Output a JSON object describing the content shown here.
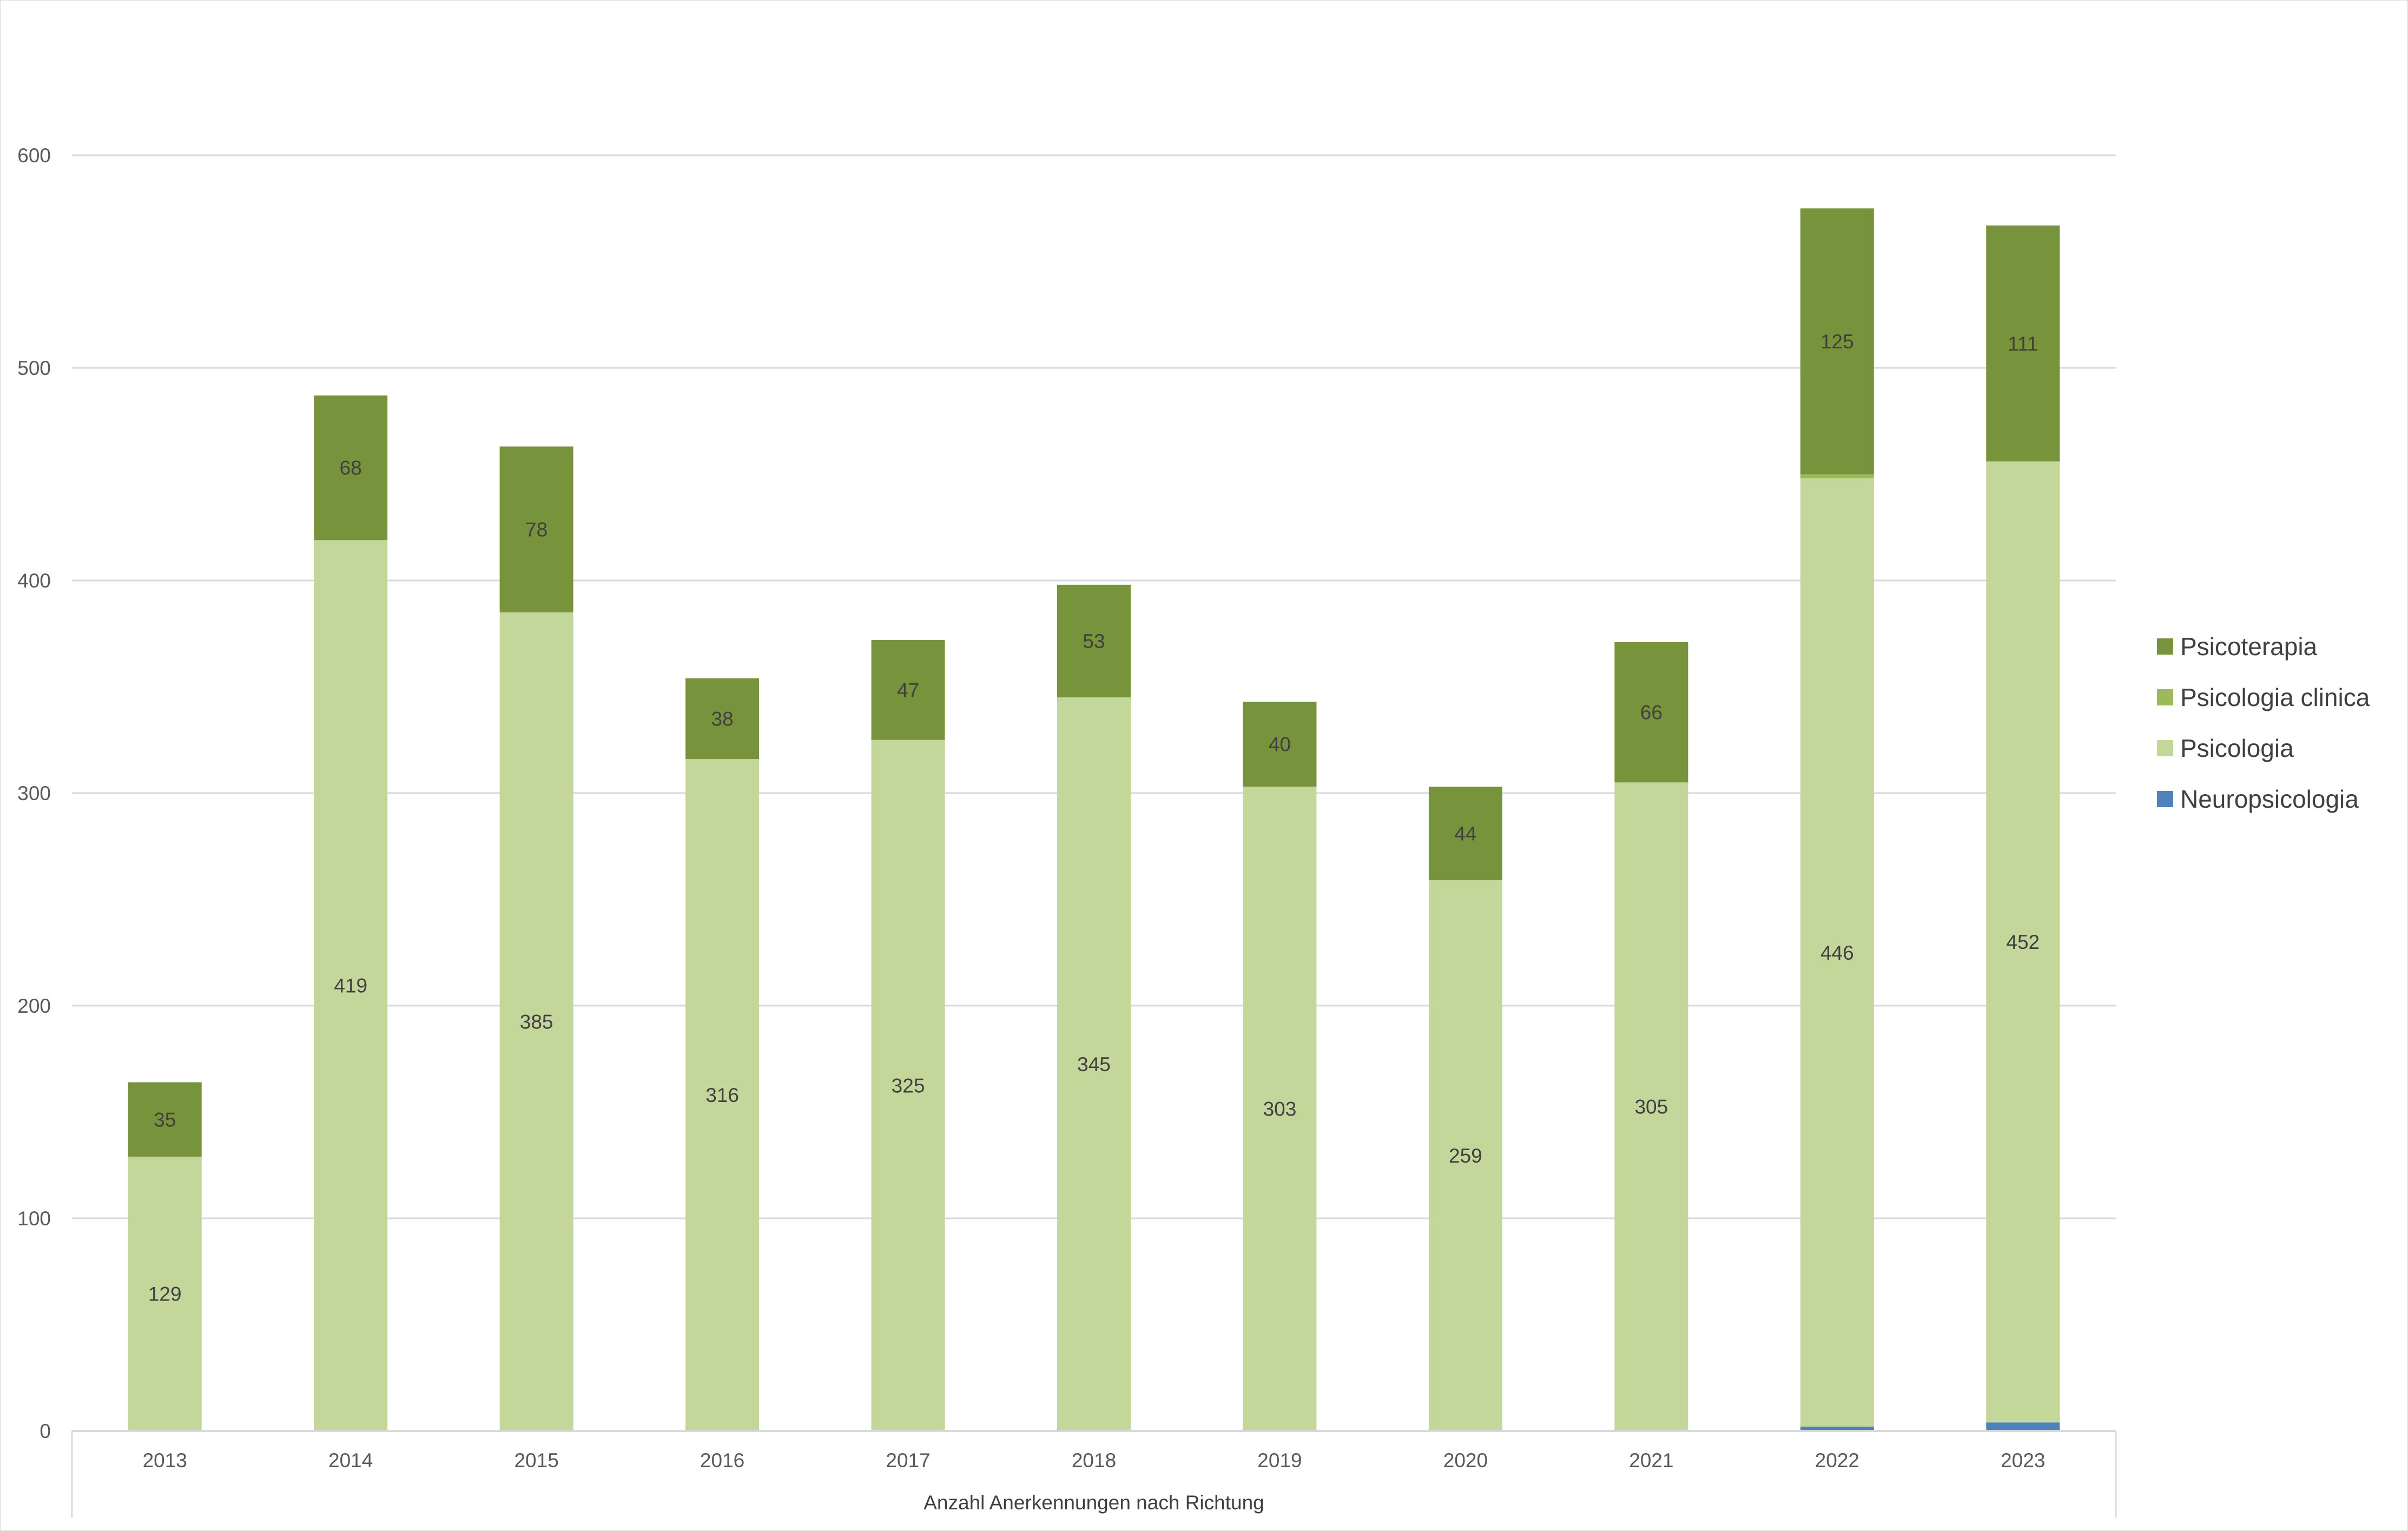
{
  "chart_data": {
    "type": "bar",
    "stacked": true,
    "title": "",
    "xlabel": "Anzahl Anerkennungen nach Richtung",
    "ylabel": "",
    "ylim": [
      0,
      600
    ],
    "yticks": [
      0,
      100,
      200,
      300,
      400,
      500,
      600
    ],
    "grid": true,
    "legend_position": "right",
    "categories": [
      "2013",
      "2014",
      "2015",
      "2016",
      "2017",
      "2018",
      "2019",
      "2020",
      "2021",
      "2022",
      "2023"
    ],
    "series": [
      {
        "name": "Neuropsicologia",
        "color": "#4f81bd",
        "show_labels": false,
        "values": [
          0,
          0,
          0,
          0,
          0,
          0,
          0,
          0,
          0,
          2,
          4
        ]
      },
      {
        "name": "Psicologia",
        "color": "#c4d79b",
        "show_labels": true,
        "values": [
          129,
          419,
          385,
          316,
          325,
          345,
          303,
          259,
          305,
          446,
          452
        ]
      },
      {
        "name": "Psicologia clinica",
        "color": "#9bbb59",
        "show_labels": false,
        "values": [
          0,
          0,
          0,
          0,
          0,
          0,
          0,
          0,
          0,
          2,
          0
        ]
      },
      {
        "name": "Psicoterapia",
        "color": "#77933c",
        "show_labels": true,
        "values": [
          35,
          68,
          78,
          38,
          47,
          53,
          40,
          44,
          66,
          125,
          111
        ]
      }
    ],
    "legend_order": [
      "Psicoterapia",
      "Psicologia clinica",
      "Psicologia",
      "Neuropsicologia"
    ]
  }
}
